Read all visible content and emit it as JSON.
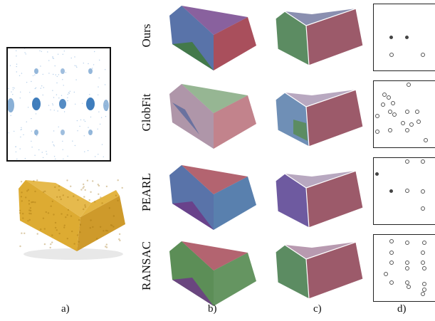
{
  "row_labels": [
    "Ours",
    "GlobFit",
    "PEARL",
    "RANSAC"
  ],
  "col_labels": [
    "a)",
    "b)",
    "c)",
    "d)"
  ],
  "colors": {
    "density_blue": "#2a6fb5",
    "input_points": "#d9a21c",
    "seg_blue": "#3c5a9a",
    "seg_red": "#9a3040",
    "seg_green": "#3f7a3a",
    "seg_purple": "#6c3a86",
    "roof_green": "#5c8c62",
    "roof_red": "#9c5a6a",
    "roof_purple": "#6e5aa0",
    "roof_blue": "#6f8fb6"
  }
}
